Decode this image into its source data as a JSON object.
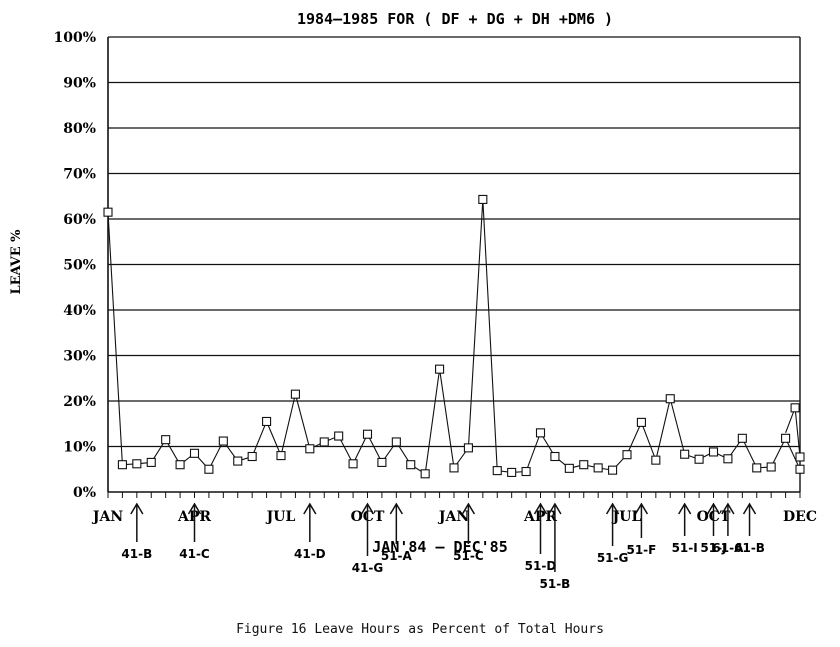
{
  "chart_data": {
    "type": "line",
    "title": "1984–1985 FOR ( DF + DG + DH +DM6 )",
    "ylabel": "LEAVE %",
    "xlabel": "JAN'84 – DEC'85",
    "ylim": [
      0,
      100
    ],
    "y_ticks": [
      "0%",
      "10%",
      "20%",
      "30%",
      "40%",
      "50%",
      "60%",
      "70%",
      "80%",
      "90%",
      "100%"
    ],
    "x_tick_labels": [
      {
        "month": 1,
        "label": "JAN"
      },
      {
        "month": 4,
        "label": "APR"
      },
      {
        "month": 7,
        "label": "JUL"
      },
      {
        "month": 10,
        "label": "OCT"
      },
      {
        "month": 13,
        "label": "JAN"
      },
      {
        "month": 16,
        "label": "APR"
      },
      {
        "month": 19,
        "label": "JUL"
      },
      {
        "month": 22,
        "label": "OCT"
      },
      {
        "month": 25,
        "label": "DEC"
      }
    ],
    "x_range_months": [
      1,
      25
    ],
    "grid": "horizontal",
    "legend": "none",
    "marker": "open-square",
    "series": [
      {
        "x": [
          1,
          1.5,
          2,
          2.5,
          3,
          3.5,
          4,
          4.5,
          5,
          5.5,
          6,
          6.5,
          7,
          7.5,
          8,
          8.5,
          9,
          9.5,
          10,
          10.5,
          11,
          11.5,
          12,
          12.5,
          13,
          13.5,
          14,
          14.5,
          15,
          15.5,
          16,
          16.5,
          17,
          17.5,
          18,
          18.5,
          19,
          19.5,
          20,
          20.5,
          21,
          21.5,
          22,
          22.5,
          23,
          23.5,
          24,
          24.5,
          25
        ],
        "values": [
          61.5,
          6,
          6.2,
          6.5,
          11.5,
          6,
          8.5,
          5,
          11.2,
          6.8,
          7.8,
          15.5,
          8,
          21.5,
          9.5,
          11,
          12.3,
          6.2,
          12.7,
          6.5,
          11,
          6,
          4,
          27,
          5.3,
          9.7,
          64.3,
          4.7,
          4.3,
          4.5,
          13,
          7.8,
          5.2,
          6,
          5.3,
          4.8,
          8.2,
          15.3,
          7,
          20.5,
          8.3,
          7.2,
          8.8,
          7.3,
          11.8,
          5.3,
          5.5,
          11.8,
          5
        ],
        "trailing": {
          "x": [
            24.5,
            24.83,
            25
          ],
          "values": [
            13,
            18.5,
            7.7
          ]
        }
      }
    ],
    "annotations": [
      {
        "label": "41-B",
        "month": 2
      },
      {
        "label": "41-C",
        "month": 4
      },
      {
        "label": "41-D",
        "month": 8
      },
      {
        "label": "41-G",
        "month": 10
      },
      {
        "label": "51-A",
        "month": 11
      },
      {
        "label": "51-C",
        "month": 13.5
      },
      {
        "label": "51-D",
        "month": 16
      },
      {
        "label": "51-B",
        "month": 16.5
      },
      {
        "label": "51-G",
        "month": 18.5
      },
      {
        "label": "51-F",
        "month": 19.5
      },
      {
        "label": "51-I",
        "month": 21
      },
      {
        "label": "51-J",
        "month": 22
      },
      {
        "label": "61-A",
        "month": 22.5
      },
      {
        "label": "61-B",
        "month": 23.25
      }
    ]
  },
  "caption": "Figure 16 Leave Hours as Percent of Total Hours"
}
